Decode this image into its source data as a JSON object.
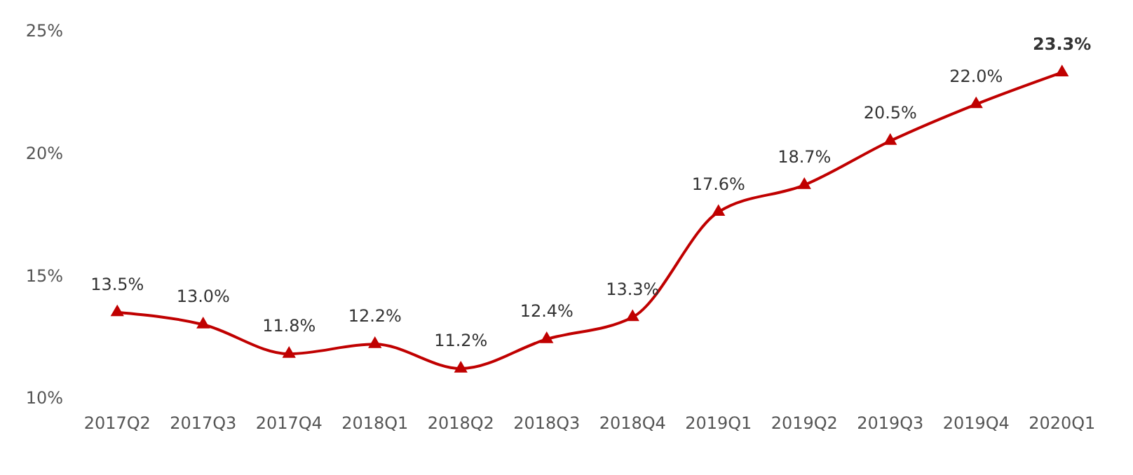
{
  "chart_data": {
    "type": "line",
    "categories": [
      "2017Q2",
      "2017Q3",
      "2017Q4",
      "2018Q1",
      "2018Q2",
      "2018Q3",
      "2018Q4",
      "2019Q1",
      "2019Q2",
      "2019Q3",
      "2019Q4",
      "2020Q1"
    ],
    "series": [
      {
        "color": "#c00000",
        "values": [
          13.5,
          13.0,
          11.8,
          12.2,
          11.2,
          12.4,
          13.3,
          17.6,
          18.7,
          20.5,
          22.0,
          23.3
        ]
      }
    ],
    "value_labels": [
      "13.5%",
      "13.0%",
      "11.8%",
      "12.2%",
      "11.2%",
      "12.4%",
      "13.3%",
      "17.6%",
      "18.7%",
      "20.5%",
      "22.0%",
      "23.3%"
    ],
    "ylim": [
      10,
      25
    ],
    "yticks": [
      {
        "value": 10,
        "label": "10%"
      },
      {
        "value": 15,
        "label": "15%"
      },
      {
        "value": 20,
        "label": "20%"
      },
      {
        "value": 25,
        "label": "25%"
      }
    ],
    "marker": "triangle",
    "line_style": "solid",
    "grid": false
  }
}
